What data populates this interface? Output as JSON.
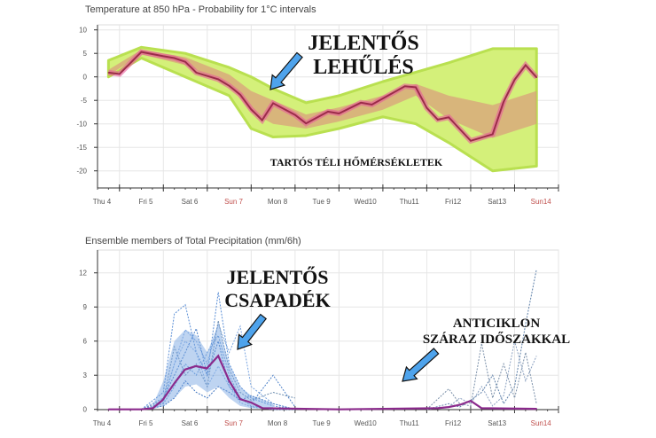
{
  "chart_data": [
    {
      "type": "line",
      "title": "Temperature at 850 hPa - Probability for 1°C intervals",
      "xlabel": "",
      "ylabel": "",
      "x_unit": "days from Thu 4 tick",
      "xlim": [
        -0.5,
        10.0
      ],
      "ylim": [
        -24,
        10.5
      ],
      "yticks": [
        10,
        5,
        0,
        -5,
        -10,
        -15,
        -20
      ],
      "xtick_labels": [
        {
          "label": "Thu 4",
          "pos": -0.4,
          "weekend": false
        },
        {
          "label": "Fri 5",
          "pos": 0.6,
          "weekend": false
        },
        {
          "label": "Sat 6",
          "pos": 1.6,
          "weekend": false
        },
        {
          "label": "Sun 7",
          "pos": 2.6,
          "weekend": true
        },
        {
          "label": "Mon 8",
          "pos": 3.6,
          "weekend": false
        },
        {
          "label": "Tue 9",
          "pos": 4.6,
          "weekend": false
        },
        {
          "label": "Wed10",
          "pos": 5.6,
          "weekend": false
        },
        {
          "label": "Thu11",
          "pos": 6.6,
          "weekend": false
        },
        {
          "label": "Fri12",
          "pos": 7.6,
          "weekend": false
        },
        {
          "label": "Sat13",
          "pos": 8.6,
          "weekend": false
        },
        {
          "label": "Sun14",
          "pos": 9.6,
          "weekend": true
        }
      ],
      "grid": true,
      "series": [
        {
          "name": "main",
          "color": "#9c2b4a",
          "x": [
            -0.25,
            0,
            0.5,
            1,
            1.25,
            1.5,
            1.75,
            2.25,
            2.5,
            2.75,
            3,
            3.25,
            3.5,
            4,
            4.25,
            4.75,
            5,
            5.5,
            5.75,
            6.5,
            6.75,
            7,
            7.25,
            7.5,
            8,
            8.5,
            8.75,
            9,
            9.25,
            9.5
          ],
          "y": [
            0.9,
            0.6,
            5.3,
            4.4,
            4.0,
            3.2,
            0.9,
            -0.5,
            -1.9,
            -3.8,
            -6.9,
            -9.2,
            -5.6,
            -8.1,
            -9.9,
            -7.4,
            -7.8,
            -5.5,
            -5.9,
            -2.0,
            -2.2,
            -6.6,
            -9.1,
            -8.6,
            -13.6,
            -12.2,
            -5.3,
            -0.6,
            2.5,
            -0.1
          ]
        }
      ],
      "probability_band": {
        "color_outer": "#d4f07a",
        "color_inner": "#d9a27c",
        "x": [
          -0.25,
          0.5,
          1.5,
          2.5,
          3,
          3.5,
          4.25,
          5,
          6,
          6.75,
          7.5,
          8.5,
          9.5
        ],
        "upper": [
          3.5,
          6.3,
          5,
          2,
          0,
          -2.5,
          -5.5,
          -4,
          -1,
          1,
          3,
          6,
          6
        ],
        "lower": [
          0,
          4,
          0,
          -4,
          -11,
          -12.8,
          -12.5,
          -11,
          -8.5,
          -10,
          -14,
          -20,
          -19
        ],
        "inner_upper": [
          1.5,
          5.8,
          4.2,
          0.5,
          -3,
          -5,
          -8,
          -6.5,
          -4,
          -1.5,
          -4,
          -6,
          -3
        ],
        "inner_lower": [
          0.3,
          4.8,
          2.5,
          -1.5,
          -7.5,
          -10,
          -11,
          -9.5,
          -7,
          -4,
          -9,
          -13,
          -10
        ]
      },
      "annotations": [
        {
          "id": "cooling",
          "lines": [
            "JELENTŐS",
            "LEHŰLÉS"
          ]
        },
        {
          "id": "winter",
          "lines": [
            "TARTÓS TÉLI HŐMÉRSÉKLETEK"
          ]
        }
      ]
    },
    {
      "type": "line",
      "title": "Ensemble members of Total Precipitation (mm/6h)",
      "xlabel": "",
      "ylabel": "",
      "xlim": [
        -0.5,
        10.0
      ],
      "ylim": [
        0,
        13.7
      ],
      "yticks": [
        0,
        3,
        6,
        9,
        12
      ],
      "grid": true,
      "series": [
        {
          "name": "mean",
          "color": "#8b2a8c",
          "x": [
            -0.25,
            0.5,
            0.76,
            0.98,
            1.27,
            1.49,
            1.74,
            1.99,
            2.25,
            2.5,
            2.75,
            3.0,
            3.26,
            5,
            7.25,
            7.5,
            7.75,
            8.0,
            8.25,
            9.5
          ],
          "y": [
            0,
            0,
            0.1,
            0.8,
            2.4,
            3.5,
            3.8,
            3.6,
            4.7,
            2.5,
            0.9,
            0.6,
            0.1,
            0,
            0.1,
            0.2,
            0.4,
            0.75,
            0.1,
            0.05
          ]
        }
      ],
      "members": [
        {
          "x": [
            0.5,
            1,
            1.25,
            1.5,
            1.75,
            2,
            2.25,
            2.5,
            2.75,
            3,
            3.5,
            4
          ],
          "y": [
            0,
            1.5,
            8.4,
            9.2,
            5,
            3,
            10.3,
            4,
            2,
            1,
            0.3,
            0
          ]
        },
        {
          "x": [
            0.5,
            1,
            1.25,
            1.5,
            1.75,
            2,
            2.25,
            2.5,
            2.75,
            3,
            3.5,
            4
          ],
          "y": [
            0,
            0.6,
            4,
            7,
            6,
            4,
            7.5,
            5,
            7.3,
            2,
            0.5,
            0
          ]
        },
        {
          "x": [
            0.5,
            1,
            1.25,
            1.5,
            1.75,
            2,
            2.25,
            2.5,
            2.75,
            3,
            3.5,
            4
          ],
          "y": [
            0,
            1,
            3,
            5,
            7.1,
            3,
            6,
            2,
            1,
            0.5,
            3,
            0.2
          ]
        },
        {
          "x": [
            0.5,
            1,
            1.25,
            1.5,
            1.75,
            2,
            2.25,
            2.5,
            2.75,
            3,
            3.5,
            4
          ],
          "y": [
            0,
            0.5,
            2,
            4,
            3,
            5,
            6.5,
            3,
            1,
            0.3,
            0,
            0
          ]
        },
        {
          "x": [
            0.5,
            1,
            1.25,
            1.5,
            1.75,
            2,
            2.25,
            2.5,
            2.75,
            3,
            3.5,
            4
          ],
          "y": [
            0,
            1,
            4,
            6,
            5,
            2,
            3.8,
            2,
            0.6,
            0.2,
            0,
            0
          ]
        },
        {
          "x": [
            0.5,
            1,
            1.25,
            1.5,
            1.75,
            2,
            2.25,
            2.5,
            2.75,
            3,
            3.5,
            4
          ],
          "y": [
            0,
            0.3,
            1,
            2.5,
            1.5,
            1,
            2,
            1.5,
            0.8,
            1.2,
            0.5,
            0
          ]
        },
        {
          "x": [
            0.5,
            1,
            1.25,
            1.5,
            1.75,
            2,
            2.25,
            2.5,
            2.75,
            3,
            3.5,
            4
          ],
          "y": [
            0,
            0.8,
            5.5,
            3,
            4,
            2,
            7.8,
            3.5,
            1.5,
            0.8,
            1.5,
            1
          ]
        },
        {
          "x": [
            7,
            7.5,
            7.75,
            8,
            8.25,
            8.5,
            8.75,
            9,
            9.25,
            9.5
          ],
          "y": [
            0,
            1.8,
            0.5,
            0.3,
            5.8,
            1,
            4,
            1,
            5,
            0.5
          ]
        },
        {
          "x": [
            7,
            7.5,
            7.75,
            8,
            8.25,
            8.5,
            8.75,
            9,
            9.25,
            9.5
          ],
          "y": [
            0,
            0.5,
            0.2,
            0.8,
            1.5,
            3,
            0.5,
            2,
            7.5,
            12.3
          ]
        },
        {
          "x": [
            7,
            7.5,
            7.75,
            8,
            8.25,
            8.5,
            8.75,
            9,
            9.25,
            9.5
          ],
          "y": [
            0,
            0.2,
            1,
            0.5,
            2,
            0.3,
            1.2,
            6,
            2.5,
            4.7
          ]
        }
      ],
      "annotations": [
        {
          "id": "precip",
          "lines": [
            "JELENTŐS",
            "CSAPADÉK"
          ]
        },
        {
          "id": "anticyclone",
          "lines": [
            "ANTICIKLON",
            "SZÁRAZ IDŐSZAKKAL"
          ]
        }
      ]
    }
  ]
}
